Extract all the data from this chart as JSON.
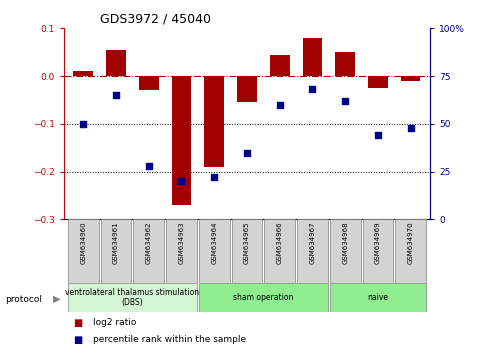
{
  "title": "GDS3972 / 45040",
  "samples": [
    "GSM634960",
    "GSM634961",
    "GSM634962",
    "GSM634963",
    "GSM634964",
    "GSM634965",
    "GSM634966",
    "GSM634967",
    "GSM634968",
    "GSM634969",
    "GSM634970"
  ],
  "log2_ratio": [
    0.01,
    0.055,
    -0.03,
    -0.27,
    -0.19,
    -0.055,
    0.045,
    0.08,
    0.05,
    -0.025,
    -0.01
  ],
  "percentile_rank": [
    50,
    65,
    28,
    20,
    22,
    35,
    60,
    68,
    62,
    44,
    48
  ],
  "bar_color": "#a00000",
  "dot_color": "#00008b",
  "ylim_left": [
    -0.3,
    0.1
  ],
  "ylim_right": [
    0,
    100
  ],
  "yticks_left": [
    -0.3,
    -0.2,
    -0.1,
    0.0,
    0.1
  ],
  "yticks_right": [
    0,
    25,
    50,
    75,
    100
  ],
  "hline_y": 0.0,
  "dotted_lines": [
    -0.1,
    -0.2
  ],
  "groups": [
    {
      "label": "ventrolateral thalamus stimulation\n(DBS)",
      "start": 0,
      "end": 3,
      "color": "#d4f5d4"
    },
    {
      "label": "sham operation",
      "start": 4,
      "end": 7,
      "color": "#90ee90"
    },
    {
      "label": "naive",
      "start": 8,
      "end": 10,
      "color": "#90ee90"
    }
  ],
  "protocol_label": "protocol",
  "legend_bar_label": "log2 ratio",
  "legend_dot_label": "percentile rank within the sample",
  "bar_color_hex": "#a00000",
  "dot_color_hex": "#00008b",
  "tick_color_left": "#cc0000",
  "tick_color_right": "#00008b",
  "sample_box_color": "#d3d3d3",
  "group_dbs_color": "#d4f5d4",
  "group_sham_color": "#90ee90",
  "group_naive_color": "#90ee90"
}
